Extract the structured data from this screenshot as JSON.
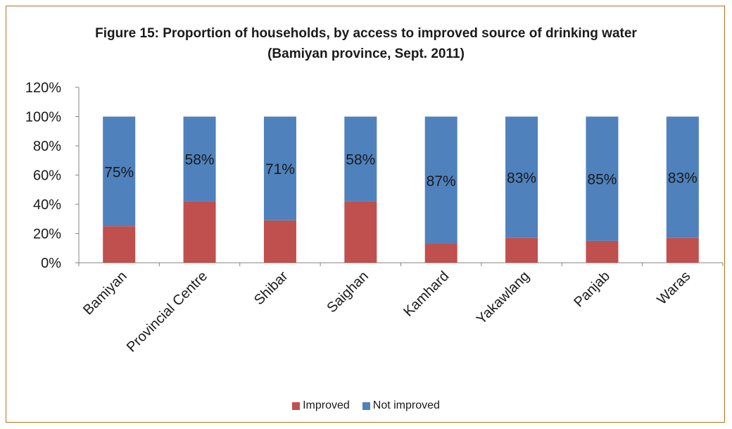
{
  "chart_data": {
    "type": "bar",
    "stacked": true,
    "title": "Figure 15: Proportion of households, by access to improved source of drinking water (Bamiyan province, Sept. 2011)",
    "categories": [
      "Bamiyan",
      "Provincial Centre",
      "Shibar",
      "Saighan",
      "Kamhard",
      "Yakawlang",
      "Panjab",
      "Waras"
    ],
    "series": [
      {
        "name": "Improved",
        "color": "#c0504d",
        "values": [
          25,
          42,
          29,
          42,
          13,
          17,
          15,
          17
        ]
      },
      {
        "name": "Not improved",
        "color": "#4f81bd",
        "values": [
          75,
          58,
          71,
          58,
          87,
          83,
          85,
          83
        ],
        "labels": [
          "75%",
          "58%",
          "71%",
          "58%",
          "87%",
          "83%",
          "85%",
          "83%"
        ]
      }
    ],
    "ylim": [
      0,
      120
    ],
    "yticks": [
      "0%",
      "20%",
      "40%",
      "60%",
      "80%",
      "100%",
      "120%"
    ],
    "xlabel": "",
    "ylabel": "",
    "legend_position": "bottom",
    "grid": false
  }
}
